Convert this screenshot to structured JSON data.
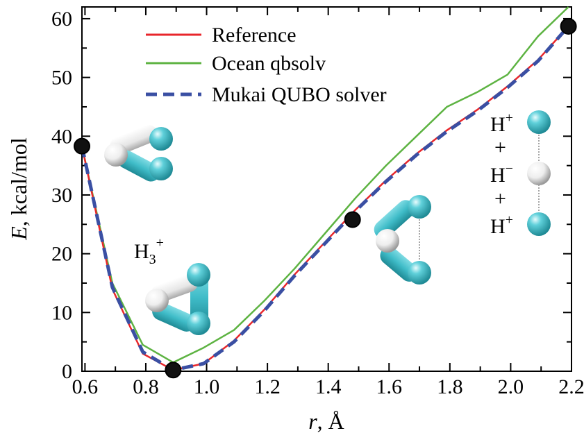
{
  "chart_data": {
    "type": "line",
    "xlabel_var": "r",
    "xlabel_unit": ", Å",
    "ylabel_var": "E",
    "ylabel_unit": ", kcal/mol",
    "xlim": [
      0.59,
      2.2
    ],
    "ylim": [
      0,
      62
    ],
    "x_ticks": [
      0.6,
      0.8,
      1.0,
      1.2,
      1.4,
      1.6,
      1.8,
      2.0,
      2.2
    ],
    "x_tick_labels": [
      "0.6",
      "0.8",
      "1.0",
      "1.2",
      "1.4",
      "1.6",
      "1.8",
      "2.0",
      "2.2"
    ],
    "y_ticks": [
      0,
      10,
      20,
      30,
      40,
      50,
      60
    ],
    "y_tick_labels": [
      "0",
      "10",
      "20",
      "30",
      "40",
      "50",
      "60"
    ],
    "legend_position": "top-left",
    "series": [
      {
        "name": "Reference",
        "color": "#e8262b",
        "style": "solid",
        "x": [
          0.59,
          0.69,
          0.79,
          0.89,
          0.99,
          1.09,
          1.19,
          1.29,
          1.39,
          1.49,
          1.59,
          1.69,
          1.79,
          1.89,
          1.99,
          2.09,
          2.19
        ],
        "y": [
          38.3,
          14.0,
          3.0,
          0.2,
          1.3,
          5.2,
          10.5,
          16.5,
          22.0,
          27.5,
          32.5,
          37.0,
          41.0,
          44.5,
          48.5,
          53.0,
          58.7
        ]
      },
      {
        "name": "Ocean qbsolv",
        "color": "#5db342",
        "style": "solid",
        "x": [
          0.59,
          0.69,
          0.79,
          0.89,
          0.99,
          1.09,
          1.19,
          1.29,
          1.39,
          1.49,
          1.59,
          1.69,
          1.79,
          1.89,
          1.99,
          2.09,
          2.19
        ],
        "y": [
          38.3,
          15.0,
          4.5,
          1.5,
          4.0,
          7.0,
          12.0,
          17.5,
          23.5,
          29.5,
          35.0,
          40.0,
          45.0,
          47.5,
          50.5,
          57.0,
          62.0
        ]
      },
      {
        "name": "Mukai QUBO solver",
        "color": "#3a4fa3",
        "style": "dashed",
        "x": [
          0.59,
          0.69,
          0.79,
          0.89,
          0.99,
          1.09,
          1.19,
          1.29,
          1.39,
          1.49,
          1.59,
          1.69,
          1.79,
          1.89,
          1.99,
          2.09,
          2.19
        ],
        "y": [
          38.3,
          14.3,
          3.3,
          0.2,
          1.3,
          5.0,
          10.3,
          16.3,
          21.8,
          27.3,
          32.3,
          36.8,
          40.8,
          44.3,
          48.3,
          52.8,
          58.7
        ]
      }
    ],
    "markers": [
      {
        "x": 0.59,
        "y": 38.3
      },
      {
        "x": 0.89,
        "y": 0.2
      },
      {
        "x": 1.48,
        "y": 25.8
      },
      {
        "x": 2.19,
        "y": 58.7
      }
    ]
  },
  "annotations": {
    "h3_label": "H",
    "h3_sub": "3",
    "h3_sup": "+",
    "dissoc": [
      {
        "base": "H",
        "sup": "+"
      },
      {
        "base": "+",
        "sup": ""
      },
      {
        "base": "H",
        "sup": "−"
      },
      {
        "base": "+",
        "sup": ""
      },
      {
        "base": "H",
        "sup": "+"
      }
    ]
  },
  "colors": {
    "hydrogen_cyan": "#3fbcc8",
    "hydrogen_white": "#f2f2f2"
  }
}
